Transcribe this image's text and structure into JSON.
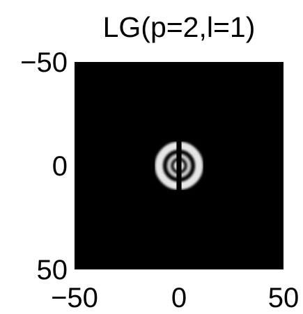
{
  "chart_data": {
    "type": "heatmap",
    "title": "LG(p=2,l=1)",
    "xlabel": "",
    "ylabel": "",
    "xlim": [
      -50,
      50
    ],
    "ylim": [
      -50,
      50
    ],
    "y_axis_direction": "down",
    "x_ticks": [
      "−50",
      "0",
      "50"
    ],
    "x_tick_values": [
      -50,
      0,
      50
    ],
    "y_ticks": [
      "−50",
      "0",
      "50"
    ],
    "y_tick_values": [
      -50,
      0,
      50
    ],
    "colormap": "gray",
    "background_color": "#000000",
    "pattern": {
      "description_values": "Interference fringes of a Laguerre-Gaussian beam p=2, l=1",
      "center": [
        0,
        0
      ],
      "rings": [
        {
          "radius": 1.6,
          "halfwidth": 0.9,
          "intensity": 0.95
        },
        {
          "radius": 4.8,
          "halfwidth": 1.0,
          "intensity": 0.8
        },
        {
          "radius": 9.6,
          "halfwidth": 1.9,
          "intensity": 0.9
        }
      ],
      "dark_gap_halfwidth": 1.2
    }
  }
}
